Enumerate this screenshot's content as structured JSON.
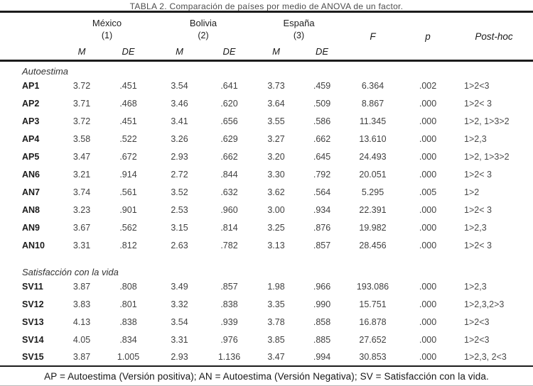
{
  "title_clipped": "TABLA 2. Comparación de países por medio de ANOVA de un factor.",
  "header": {
    "groups": [
      {
        "name": "México",
        "number": "(1)"
      },
      {
        "name": "Bolivia",
        "number": "(2)"
      },
      {
        "name": "España",
        "number": "(3)"
      }
    ],
    "m_label": "M",
    "de_label": "DE",
    "f_label": "F",
    "p_label": "p",
    "posthoc_label": "Post-hoc"
  },
  "sections": [
    {
      "name": "Autoestima",
      "rows": [
        {
          "label": "AP1",
          "values": [
            "3.72",
            ".451",
            "3.54",
            ".641",
            "3.73",
            ".459",
            "6.364",
            ".002",
            "1>2<3"
          ]
        },
        {
          "label": "AP2",
          "values": [
            "3.71",
            ".468",
            "3.46",
            ".620",
            "3.64",
            ".509",
            "8.867",
            ".000",
            "1>2< 3"
          ]
        },
        {
          "label": "AP3",
          "values": [
            "3.72",
            ".451",
            "3.41",
            ".656",
            "3.55",
            ".586",
            "11.345",
            ".000",
            "1>2, 1>3>2"
          ]
        },
        {
          "label": "AP4",
          "values": [
            "3.58",
            ".522",
            "3.26",
            ".629",
            "3.27",
            ".662",
            "13.610",
            ".000",
            "1>2,3"
          ]
        },
        {
          "label": "AP5",
          "values": [
            "3.47",
            ".672",
            "2.93",
            ".662",
            "3.20",
            ".645",
            "24.493",
            ".000",
            "1>2, 1>3>2"
          ]
        },
        {
          "label": "AN6",
          "values": [
            "3.21",
            ".914",
            "2.72",
            ".844",
            "3.30",
            ".792",
            "20.051",
            ".000",
            "1>2< 3"
          ]
        },
        {
          "label": "AN7",
          "values": [
            "3.74",
            ".561",
            "3.52",
            ".632",
            "3.62",
            ".564",
            "5.295",
            ".005",
            "1>2"
          ]
        },
        {
          "label": "AN8",
          "values": [
            "3.23",
            ".901",
            "2.53",
            ".960",
            "3.00",
            ".934",
            "22.391",
            ".000",
            "1>2< 3"
          ]
        },
        {
          "label": "AN9",
          "values": [
            "3.67",
            ".562",
            "3.15",
            ".814",
            "3.25",
            ".876",
            "19.982",
            ".000",
            "1>2,3"
          ]
        },
        {
          "label": "AN10",
          "values": [
            "3.31",
            ".812",
            "2.63",
            ".782",
            "3.13",
            ".857",
            "28.456",
            ".000",
            "1>2< 3"
          ]
        }
      ]
    },
    {
      "name": "Satisfacción con la vida",
      "rows": [
        {
          "label": "SV11",
          "values": [
            "3.87",
            ".808",
            "3.49",
            ".857",
            "1.98",
            ".966",
            "193.086",
            ".000",
            "1>2,3"
          ]
        },
        {
          "label": "SV12",
          "values": [
            "3.83",
            ".801",
            "3.32",
            ".838",
            "3.35",
            ".990",
            "15.751",
            ".000",
            "1>2,3,2>3"
          ]
        },
        {
          "label": "SV13",
          "values": [
            "4.13",
            ".838",
            "3.54",
            ".939",
            "3.78",
            ".858",
            "16.878",
            ".000",
            "1>2<3"
          ]
        },
        {
          "label": "SV14",
          "values": [
            "4.05",
            ".834",
            "3.31",
            ".976",
            "3.85",
            ".885",
            "27.652",
            ".000",
            "1>2<3"
          ]
        },
        {
          "label": "SV15",
          "values": [
            "3.87",
            "1.005",
            "2.93",
            "1.136",
            "3.47",
            ".994",
            "30.853",
            ".000",
            "1>2,3, 2<3"
          ]
        }
      ]
    }
  ],
  "footnote": "AP = Autoestima (Versión positiva); AN = Autoestima (Versión Negativa); SV = Satisfacción con la vida."
}
